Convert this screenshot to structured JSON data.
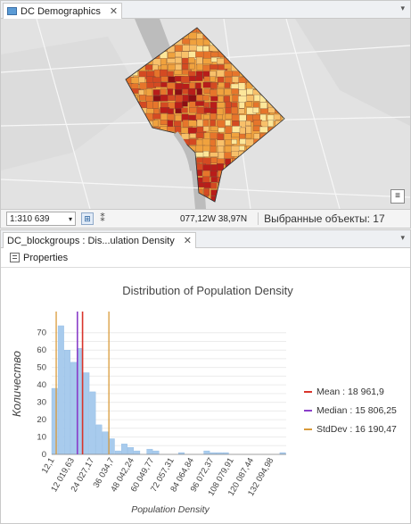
{
  "map_pane": {
    "tab_title": "DC Demographics",
    "scale": "1:310 639",
    "coordinates": "077,12W 38,97N",
    "selected_features": "Выбранные объекты: 17"
  },
  "chart_pane": {
    "tab_title": "DC_blockgroups : Dis...ulation Density",
    "properties_label": "Properties"
  },
  "colors": {
    "bars": "#a8cbed",
    "mean": "#d9342b",
    "median": "#8a3ec9",
    "stddev": "#d99a3a"
  },
  "chart_data": {
    "type": "bar",
    "title": "Distribution of Population Density",
    "xlabel": "Population Density",
    "ylabel": "Количество",
    "ylim": [
      0,
      75
    ],
    "y_ticks": [
      0,
      5,
      10,
      15,
      20,
      25,
      30,
      35,
      40,
      45,
      50,
      55,
      60,
      65,
      70
    ],
    "x_tick_labels": [
      "12,1",
      "12 019,63",
      "24 027,17",
      "36 034,7",
      "48 042,24",
      "60 049,77",
      "72 057,31",
      "84 064,84",
      "96 072,37",
      "108 079,91",
      "120 087,44",
      "132 094,98"
    ],
    "bin_counts": [
      38,
      74,
      60,
      53,
      61,
      47,
      36,
      17,
      13,
      9,
      2,
      6,
      4,
      2,
      0,
      3,
      2,
      0,
      0,
      0,
      1,
      0,
      0,
      0,
      2,
      1,
      1,
      1,
      0,
      0,
      0,
      0,
      0,
      0,
      0,
      0,
      1
    ],
    "bin_range": [
      12.1,
      144102.5
    ],
    "reference_lines": [
      {
        "name": "Mean",
        "value": 18961.9,
        "label": "Mean : 18 961,9"
      },
      {
        "name": "Median",
        "value": 15806.25,
        "label": "Median : 15 806,25"
      },
      {
        "name": "StdDev",
        "values": [
          2771.43,
          35152.37
        ],
        "label": "StdDev : 16 190,47"
      }
    ],
    "legend_position": "right",
    "grid": true
  }
}
